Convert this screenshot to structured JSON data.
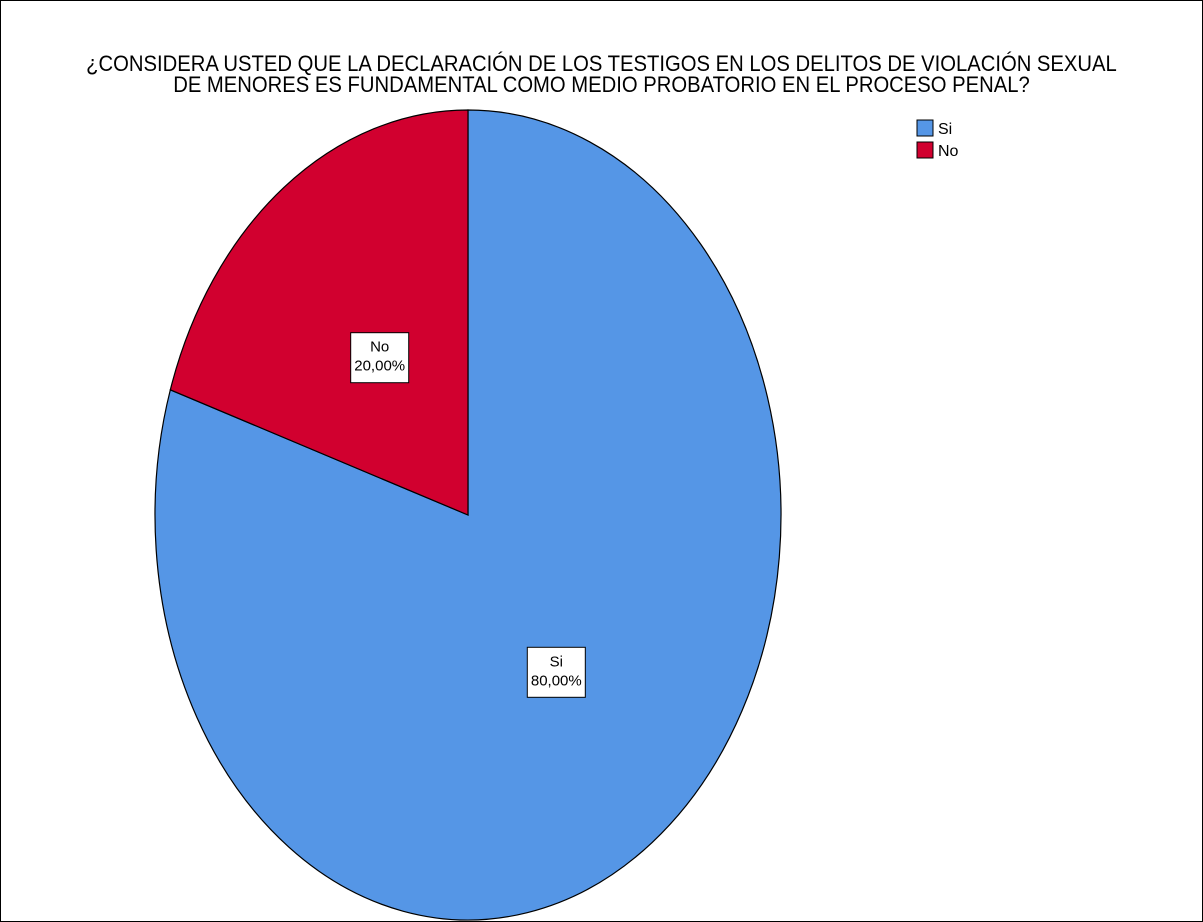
{
  "chart_data": {
    "type": "pie",
    "title_lines": [
      "¿CONSIDERA USTED QUE LA DECLARACIÓN DE LOS TESTIGOS EN LOS DELITOS DE VIOLACIÓN SEXUAL",
      "DE MENORES ES FUNDAMENTAL COMO MEDIO PROBATORIO EN EL PROCESO PENAL?"
    ],
    "slices": [
      {
        "label": "Si",
        "value": 80,
        "value_label": "80,00%",
        "color": "#5596e6"
      },
      {
        "label": "No",
        "value": 20,
        "value_label": "20,00%",
        "color": "#d1002f"
      }
    ],
    "legend": {
      "position": "top-right",
      "entries": [
        "Si",
        "No"
      ]
    },
    "start_angle_deg": 0,
    "direction": "clockwise"
  }
}
